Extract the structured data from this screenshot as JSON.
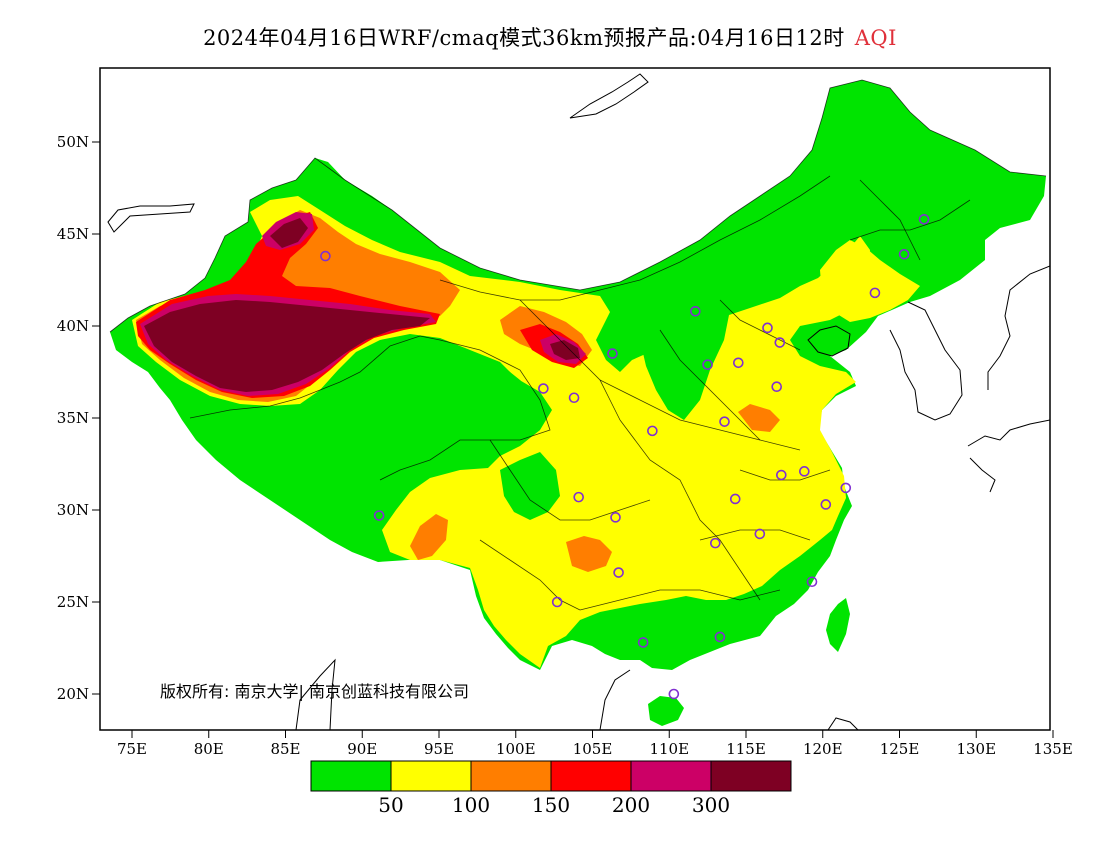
{
  "title": {
    "main": "2024年04月16日WRF/cmaq模式36km预报产品:04月16日12时",
    "variable": "AQI"
  },
  "colors": {
    "title_accent": "#e0303a",
    "levels": [
      "#00e400",
      "#ffff00",
      "#ff7e00",
      "#ff0000",
      "#cc0066",
      "#7e0023"
    ],
    "station_marker": "#8030d0",
    "coastline": "#000000",
    "border": "#000000"
  },
  "axes": {
    "x_ticks": [
      "75E",
      "80E",
      "85E",
      "90E",
      "95E",
      "100E",
      "105E",
      "110E",
      "115E",
      "120E",
      "125E",
      "130E",
      "135E"
    ],
    "y_ticks": [
      "50N",
      "45N",
      "40N",
      "35N",
      "30N",
      "25N",
      "20N"
    ]
  },
  "colorbar": {
    "ticks": [
      "50",
      "100",
      "150",
      "200",
      "300"
    ]
  },
  "copyright": "版权所有: 南京大学| 南京创蓝科技有限公司",
  "stations": [
    {
      "lon": 87.6,
      "lat": 43.8
    },
    {
      "lon": 91.1,
      "lat": 29.7
    },
    {
      "lon": 101.8,
      "lat": 36.6
    },
    {
      "lon": 103.8,
      "lat": 36.1
    },
    {
      "lon": 106.3,
      "lat": 38.5
    },
    {
      "lon": 111.7,
      "lat": 40.8
    },
    {
      "lon": 112.5,
      "lat": 37.9
    },
    {
      "lon": 114.5,
      "lat": 38.0
    },
    {
      "lon": 116.4,
      "lat": 39.9
    },
    {
      "lon": 117.2,
      "lat": 39.1
    },
    {
      "lon": 117.0,
      "lat": 36.7
    },
    {
      "lon": 113.6,
      "lat": 34.8
    },
    {
      "lon": 108.9,
      "lat": 34.3
    },
    {
      "lon": 104.1,
      "lat": 30.7
    },
    {
      "lon": 106.5,
      "lat": 29.6
    },
    {
      "lon": 106.7,
      "lat": 26.6
    },
    {
      "lon": 102.7,
      "lat": 25.0
    },
    {
      "lon": 108.3,
      "lat": 22.8
    },
    {
      "lon": 113.3,
      "lat": 23.1
    },
    {
      "lon": 110.3,
      "lat": 20.0
    },
    {
      "lon": 114.3,
      "lat": 30.6
    },
    {
      "lon": 113.0,
      "lat": 28.2
    },
    {
      "lon": 115.9,
      "lat": 28.7
    },
    {
      "lon": 117.3,
      "lat": 31.9
    },
    {
      "lon": 118.8,
      "lat": 32.1
    },
    {
      "lon": 120.2,
      "lat": 30.3
    },
    {
      "lon": 121.5,
      "lat": 31.2
    },
    {
      "lon": 119.3,
      "lat": 26.1
    },
    {
      "lon": 123.4,
      "lat": 41.8
    },
    {
      "lon": 125.3,
      "lat": 43.9
    },
    {
      "lon": 126.6,
      "lat": 45.8
    }
  ]
}
